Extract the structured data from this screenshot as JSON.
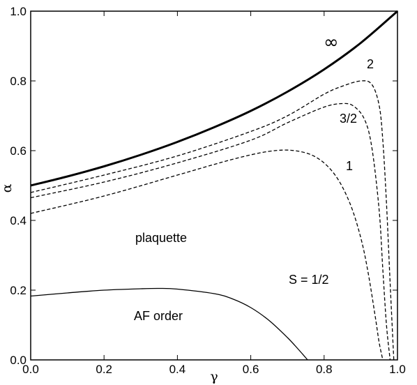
{
  "chart_data": {
    "type": "line",
    "title": "",
    "xlabel": "γ",
    "ylabel": "α",
    "xlim": [
      0.0,
      1.0
    ],
    "ylim": [
      0.0,
      1.0
    ],
    "xticks": [
      "0.0",
      "0.2",
      "0.4",
      "0.6",
      "0.8",
      "1.0"
    ],
    "yticks": [
      "0.0",
      "0.2",
      "0.4",
      "0.6",
      "0.8",
      "1.0"
    ],
    "grid": false,
    "legend": "none",
    "series": [
      {
        "name": "∞",
        "style": "solid-thick",
        "x": [
          0.0,
          0.1,
          0.2,
          0.3,
          0.4,
          0.5,
          0.6,
          0.7,
          0.8,
          0.9,
          1.0
        ],
        "y": [
          0.5,
          0.526,
          0.555,
          0.588,
          0.625,
          0.667,
          0.714,
          0.769,
          0.833,
          0.909,
          1.0
        ]
      },
      {
        "name": "2",
        "style": "dashed",
        "x": [
          0.0,
          0.2,
          0.4,
          0.6,
          0.7,
          0.8,
          0.85,
          0.9,
          0.93,
          0.95,
          0.96,
          0.97,
          0.98,
          0.99
        ],
        "y": [
          0.48,
          0.53,
          0.585,
          0.655,
          0.7,
          0.762,
          0.785,
          0.8,
          0.79,
          0.73,
          0.63,
          0.45,
          0.22,
          0.0
        ]
      },
      {
        "name": "3/2",
        "style": "dashed",
        "x": [
          0.0,
          0.2,
          0.4,
          0.6,
          0.7,
          0.8,
          0.85,
          0.88,
          0.91,
          0.93,
          0.95,
          0.96,
          0.97,
          0.98
        ],
        "y": [
          0.465,
          0.51,
          0.565,
          0.63,
          0.68,
          0.725,
          0.735,
          0.728,
          0.69,
          0.61,
          0.43,
          0.26,
          0.1,
          0.0
        ]
      },
      {
        "name": "1",
        "style": "dashed",
        "x": [
          0.0,
          0.2,
          0.4,
          0.55,
          0.65,
          0.72,
          0.78,
          0.83,
          0.87,
          0.9,
          0.92,
          0.94,
          0.95,
          0.96
        ],
        "y": [
          0.42,
          0.47,
          0.53,
          0.575,
          0.598,
          0.6,
          0.58,
          0.53,
          0.45,
          0.35,
          0.25,
          0.12,
          0.05,
          0.0
        ]
      },
      {
        "name": "S = 1/2",
        "style": "solid-thin",
        "x": [
          0.0,
          0.1,
          0.2,
          0.3,
          0.35,
          0.4,
          0.5,
          0.55,
          0.6,
          0.65,
          0.7,
          0.73,
          0.755
        ],
        "y": [
          0.183,
          0.192,
          0.2,
          0.204,
          0.205,
          0.203,
          0.19,
          0.175,
          0.15,
          0.113,
          0.064,
          0.03,
          0.0
        ]
      }
    ],
    "annotations": {
      "inf": "∞",
      "s2": "2",
      "s32": "3/2",
      "s1": "1",
      "shalf": "S = 1/2",
      "plaquette": "plaquette",
      "af_order": "AF order"
    }
  }
}
